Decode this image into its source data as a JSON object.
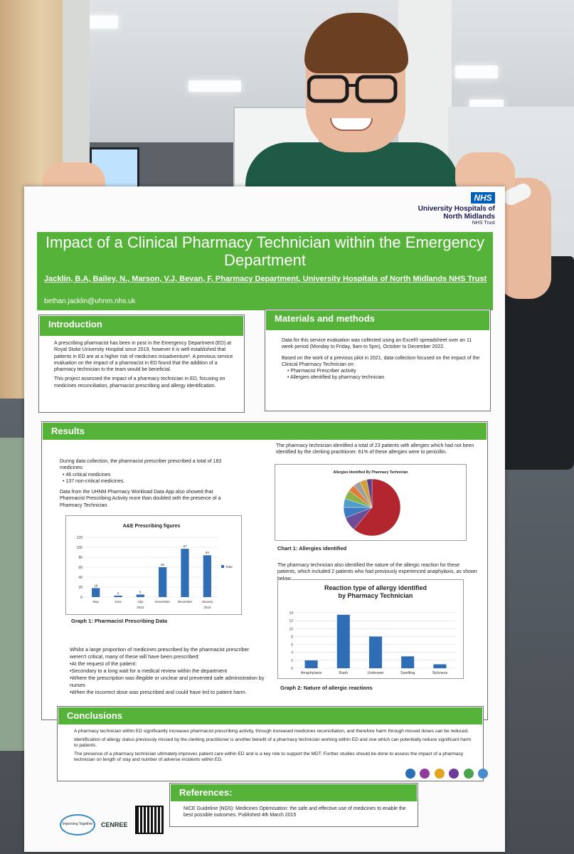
{
  "poster": {
    "nhs_logo": "NHS",
    "trust_name": "University Hospitals of North Midlands",
    "trust_sub": "NHS Trust",
    "title": "Impact of a Clinical Pharmacy Technician within the Emergency Department",
    "authors": "Jacklin, B.A, Bailey, N., Marson, V.J, Bevan, F, Pharmacy Department, University Hospitals of North Midlands NHS Trust",
    "email": "bethan.jacklin@uhnm.nhs.uk"
  },
  "introduction": {
    "heading": "Introduction",
    "p1": "A prescribing pharmacist has been in post in the Emergency Department (ED) at Royal Stoke University Hospital since 2019, however it is well established that patients in ED are at a higher risk of medicines misadventure¹. A previous service evaluation on the impact of a pharmacist in ED found that the addition of a pharmacy technician to the team would be beneficial.",
    "p2": "This project assessed the impact of a pharmacy technician in ED, focusing on medicines reconciliation, pharmacist prescribing and allergy identification."
  },
  "methods": {
    "heading": "Materials and methods",
    "p1": "Data for this service evaluation was collected using an Excel® spreadsheet over an 11 week period (Monday to Friday, 9am to 5pm), October to December 2022.",
    "p2": "Based on the work of a previous pilot in 2021, data collection focused on the impact of the Clinical Pharmacy Technician on:",
    "bullets": [
      "Pharmacist Prescriber activity",
      "Allergies identified by pharmacy technician"
    ]
  },
  "results": {
    "heading": "Results",
    "left_p1": "During data collection, the pharmacist prescriber prescribed a total of 183 medicines:",
    "left_bullets": [
      "46 critical medicines",
      "137 non-critical medicines."
    ],
    "left_p2": "Data from the UHNM Pharmacy Workload Data App also showed that Pharmacist Prescribing Activity more than doubled with the presence of a Pharmacy Technician.",
    "graph1_caption": "Graph 1: Pharmacist Prescribing Data",
    "right_p1": "The pharmacy technician identified a total of 23 patients with allergies which had not been Identified by the clerking practitioner. 61% of these allergies were to penicillin.",
    "chart1_caption": "Chart 1: Allergies identified",
    "right_p2": "The pharmacy technician also identified the nature of the allergic reaction for these patients, which included 2 patients who had previously experienced anaphylaxis, as shown below:",
    "graph2_caption": "Graph 2: Nature of allergic reactions",
    "lower_p1": "Whilst a large proportion of medicines prescribed by the pharmacist prescriber weren't critical, many of these will have been prescribed:",
    "lower_bullets": [
      "•At the request of the patient:",
      "•Secondary to a long wait for a medical review within the department",
      "•Where the prescription was illegible or unclear and prevented safe administration by nurses",
      "•When the incorrect dose was prescribed and could have led to patient harm."
    ]
  },
  "conclusions": {
    "heading": "Conclusions",
    "p1": "A pharmacy technician within ED significantly increases pharmacist prescribing activity, through increased medicines reconciliation, and therefore harm through missed doses can be reduced.",
    "p2": "Identification of allergy status previously missed by the clerking practitioner is another benefit of a pharmacy technician working within ED and one which can potentially reduce significant harm to patients.",
    "p3": "The presence of a pharmacy technician ultimately improves patient care within ED and is a key role to support the MDT. Further studies should be done to assess the impact of a pharmacy technician on length of stay and number of adverse incidents within ED."
  },
  "references": {
    "heading": "References:",
    "text": "NICE Guideline (NG5): Medicines Optimisation: the safe and effective use of medicines to enable the best possible outcomes. Published 4th March 2015"
  },
  "footer": {
    "logo1": "Improving Together",
    "logo2": "CENREE"
  },
  "chart_data": [
    {
      "type": "bar",
      "title": "A&E Prescribing figures",
      "categories": [
        "May",
        "June",
        "July",
        "November",
        "December",
        "January"
      ],
      "group_labels": [
        "2022",
        "2023"
      ],
      "values": [
        18,
        3,
        5,
        60,
        97,
        84
      ],
      "ylim": [
        0,
        120
      ],
      "yticks": [
        0,
        20,
        40,
        60,
        80,
        100,
        120
      ],
      "legend": "Total",
      "color": "#2f6eb5"
    },
    {
      "type": "pie",
      "title": "Allergies Identified By Pharmacy Technician",
      "values": [
        61,
        8,
        6,
        5,
        5,
        4,
        4,
        4,
        3
      ],
      "colors": [
        "#b3262f",
        "#6f4a97",
        "#3f79c2",
        "#4f9dc8",
        "#8cb34a",
        "#e07d3a",
        "#9f9f9f",
        "#d0a23a",
        "#5c3d8a"
      ]
    },
    {
      "type": "bar",
      "title": "Reaction type of allergy identified by Pharmacy Technician",
      "categories": [
        "Anaphylaxis",
        "Rash",
        "Unknown",
        "Swelling",
        "Sickness"
      ],
      "values": [
        2,
        13.5,
        8,
        3,
        1
      ],
      "ylim": [
        0,
        14
      ],
      "yticks": [
        0,
        2,
        4,
        6,
        8,
        10,
        12,
        14
      ],
      "color": "#2f6eb5"
    }
  ]
}
